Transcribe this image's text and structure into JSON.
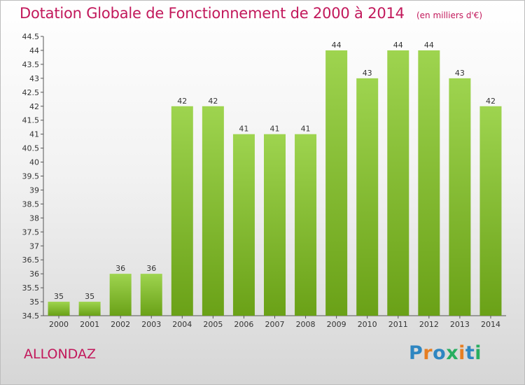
{
  "chart_title": "Dotation Globale de Fonctionnement de 2000 à 2014",
  "chart_subtitle": "(en milliers d'€)",
  "commune": "ALLONDAZ",
  "brand": {
    "letters": [
      {
        "char": "P",
        "color": "#2e86c1"
      },
      {
        "char": "r",
        "color": "#e67e22"
      },
      {
        "char": "o",
        "color": "#2e86c1"
      },
      {
        "char": "x",
        "color": "#27ae60"
      },
      {
        "char": "i",
        "color": "#e67e22"
      },
      {
        "char": "t",
        "color": "#2e86c1"
      },
      {
        "char": "i",
        "color": "#27ae60"
      }
    ]
  },
  "colors": {
    "bar_top": "#9ed44f",
    "bar_bottom": "#6aa117",
    "text": "#333333",
    "accent": "#c2185b"
  },
  "chart_data": {
    "type": "bar",
    "title": "Dotation Globale de Fonctionnement de 2000 à 2014",
    "subtitle": "(en milliers d'€)",
    "categories": [
      "2000",
      "2001",
      "2002",
      "2003",
      "2004",
      "2005",
      "2006",
      "2007",
      "2008",
      "2009",
      "2010",
      "2011",
      "2012",
      "2013",
      "2014"
    ],
    "values": [
      35,
      35,
      36,
      36,
      42,
      42,
      41,
      41,
      41,
      44,
      43,
      44,
      44,
      43,
      42
    ],
    "ylim": [
      34.5,
      44.5
    ],
    "yticks": [
      "34.5",
      "35",
      "35.5",
      "36",
      "36.5",
      "37",
      "37.5",
      "38",
      "38.5",
      "39",
      "39.5",
      "40",
      "40.5",
      "41",
      "41.5",
      "42",
      "42.5",
      "43",
      "43.5",
      "44",
      "44.5"
    ],
    "grid": false,
    "legend": "none"
  }
}
